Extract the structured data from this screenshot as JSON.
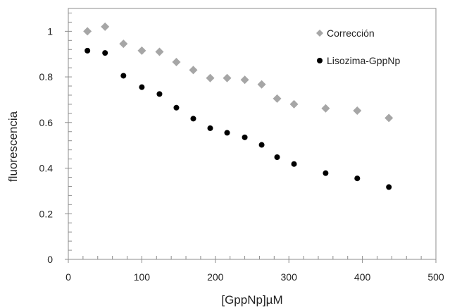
{
  "chart_data": {
    "type": "scatter",
    "title": "",
    "xlabel": "[GppNp]µM",
    "ylabel": "fluorescencia",
    "xlim": [
      0,
      500
    ],
    "ylim": [
      0,
      1.1
    ],
    "xticks": [
      0,
      100,
      200,
      300,
      400,
      500
    ],
    "yticks": [
      0,
      0.2,
      0.4,
      0.6,
      0.8,
      1
    ],
    "xtick_labels": [
      "0",
      "100",
      "200",
      "300",
      "400",
      "500"
    ],
    "ytick_labels": [
      "0",
      "0.2",
      "0.4",
      "0.6",
      "0.8",
      "1"
    ],
    "grid": false,
    "legend_position": "top-right",
    "series": [
      {
        "name": "Corrección",
        "marker": "diamond",
        "color": "#a6a6a6",
        "x": [
          26,
          50,
          75,
          100,
          124,
          147,
          170,
          193,
          216,
          240,
          263,
          284,
          307,
          350,
          393,
          436
        ],
        "y": [
          1.0,
          1.02,
          0.945,
          0.915,
          0.91,
          0.865,
          0.83,
          0.795,
          0.795,
          0.787,
          0.767,
          0.705,
          0.68,
          0.662,
          0.652,
          0.62
        ]
      },
      {
        "name": "Lisozima-GppNp",
        "marker": "circle",
        "color": "#000000",
        "x": [
          26,
          50,
          75,
          100,
          124,
          147,
          170,
          193,
          216,
          240,
          263,
          284,
          307,
          350,
          393,
          436
        ],
        "y": [
          0.915,
          0.905,
          0.805,
          0.755,
          0.725,
          0.665,
          0.617,
          0.575,
          0.555,
          0.535,
          0.502,
          0.448,
          0.418,
          0.378,
          0.355,
          0.317
        ]
      }
    ]
  }
}
